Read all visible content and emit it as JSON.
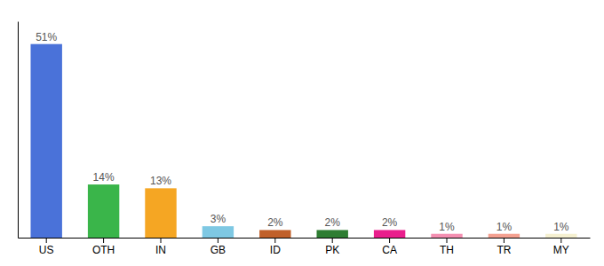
{
  "chart_data": {
    "type": "bar",
    "categories": [
      "US",
      "OTH",
      "IN",
      "GB",
      "ID",
      "PK",
      "CA",
      "TH",
      "TR",
      "MY"
    ],
    "values": [
      51,
      14,
      13,
      3,
      2,
      2,
      2,
      1,
      1,
      1
    ],
    "value_labels": [
      "51%",
      "14%",
      "13%",
      "3%",
      "2%",
      "2%",
      "2%",
      "1%",
      "1%",
      "1%"
    ],
    "colors": [
      "#4a72d9",
      "#3ab54a",
      "#f5a623",
      "#7ec8e3",
      "#c0602a",
      "#2e7d32",
      "#e91e8c",
      "#f48fb1",
      "#f4a090",
      "#f5f0d0"
    ],
    "ylim": [
      0,
      57
    ],
    "data_labels": true,
    "tick_labels": "x"
  }
}
